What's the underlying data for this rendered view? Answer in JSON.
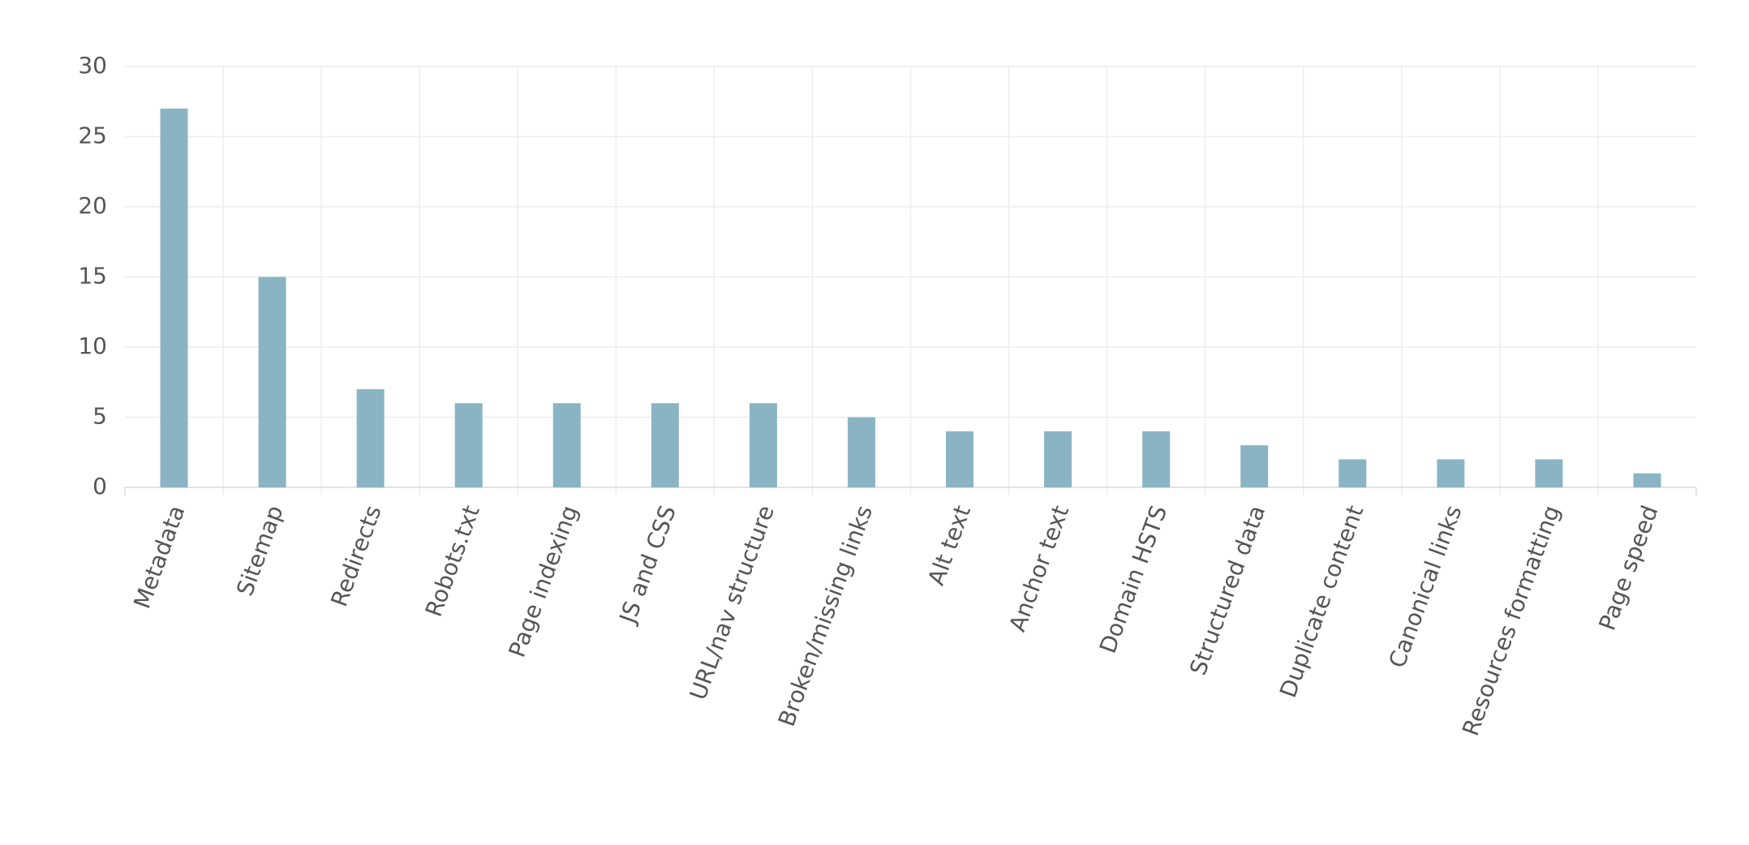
{
  "chart_data": {
    "type": "bar",
    "categories": [
      "Metadata",
      "Sitemap",
      "Redirects",
      "Robots.txt",
      "Page indexing",
      "JS and CSS",
      "URL/nav structure",
      "Broken/missing links",
      "Alt text",
      "Anchor text",
      "Domain HSTS",
      "Structured data",
      "Duplicate content",
      "Canonical links",
      "Resources formatting",
      "Page speed"
    ],
    "values": [
      27,
      15,
      7,
      6,
      6,
      6,
      6,
      5,
      4,
      4,
      4,
      3,
      2,
      2,
      2,
      1
    ],
    "color": "#8ab4c4",
    "ylim": [
      0,
      30
    ],
    "yticks": [
      0,
      5,
      10,
      15,
      20,
      25,
      30
    ],
    "grid": true
  }
}
